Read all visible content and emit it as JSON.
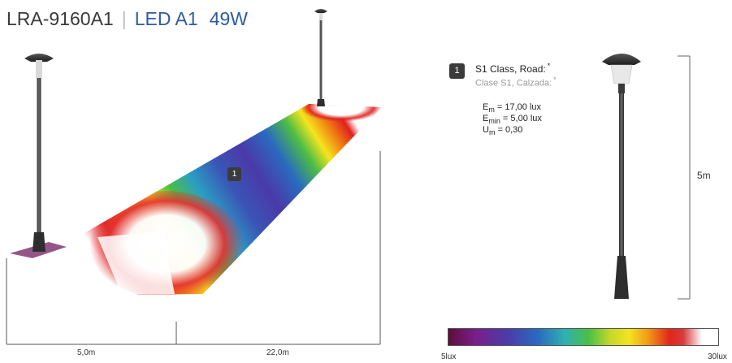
{
  "header": {
    "model": "LRA-9160A1",
    "separator": "|",
    "product": "LED A1",
    "power": "49W"
  },
  "dimensions": {
    "spacing_left": "5,0m",
    "spacing_right": "22,0m",
    "pole_height": "5m"
  },
  "road": {
    "zone_badge": "1"
  },
  "lighting_class": {
    "badge": "1",
    "name_en": "S1 Class, Road:",
    "name_es": "Clase S1, Calzada:",
    "note_mark": "*",
    "metrics": [
      {
        "symbol": "E",
        "sub": "m",
        "value": "= 17,00 lux"
      },
      {
        "symbol": "E",
        "sub": "min",
        "value": "= 5,00 lux"
      },
      {
        "symbol": "U",
        "sub": "m",
        "value": "= 0,30"
      }
    ]
  },
  "legend": {
    "min_label": "5lux",
    "max_label": "30lux"
  },
  "colors": {
    "brand_blue": "#2f5c9e",
    "pole": "#3a3a3a"
  }
}
